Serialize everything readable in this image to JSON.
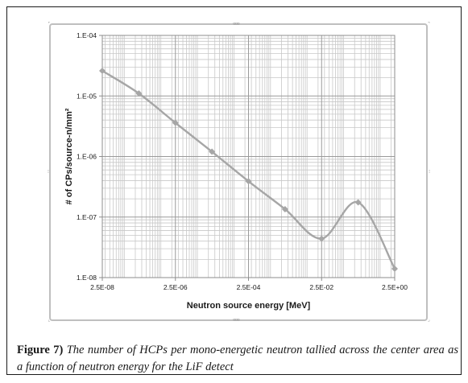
{
  "caption": {
    "label": "Figure 7)",
    "text": "The number of HCPs per mono-energetic neutron tallied across the center area as a function of neutron energy for the LiF detect"
  },
  "chart_data": {
    "type": "line",
    "title": "",
    "xlabel": "Neutron source energy [MeV]",
    "ylabel": "# of CPs/source-n/mm²",
    "x_scale": "log",
    "y_scale": "log",
    "xlim": [
      2.5e-08,
      2.5
    ],
    "ylim": [
      1e-08,
      0.0001
    ],
    "x_ticks": [
      2.5e-08,
      2.5e-06,
      0.00025,
      0.025,
      2.5
    ],
    "x_tick_labels": [
      "2.5E-08",
      "2.5E-06",
      "2.5E-04",
      "2.5E-02",
      "2.5E+00"
    ],
    "y_ticks": [
      1e-08,
      1e-07,
      1e-06,
      1e-05,
      0.0001
    ],
    "y_tick_labels": [
      "1.E-08",
      "1.E-07",
      "1.E-06",
      "1.E-05",
      "1.E-04"
    ],
    "grid": true,
    "legend": false,
    "series_color": "#a6a6a6",
    "series": [
      {
        "x": [
          2.5e-08,
          2.5e-07,
          2.5e-06,
          2.5e-05,
          0.00025,
          0.0025,
          0.025,
          0.25,
          2.5
        ],
        "y": [
          2.6e-05,
          1.1e-05,
          3.6e-06,
          1.2e-06,
          3.9e-07,
          1.35e-07,
          4.4e-08,
          1.75e-07,
          1.4e-08
        ]
      }
    ]
  }
}
